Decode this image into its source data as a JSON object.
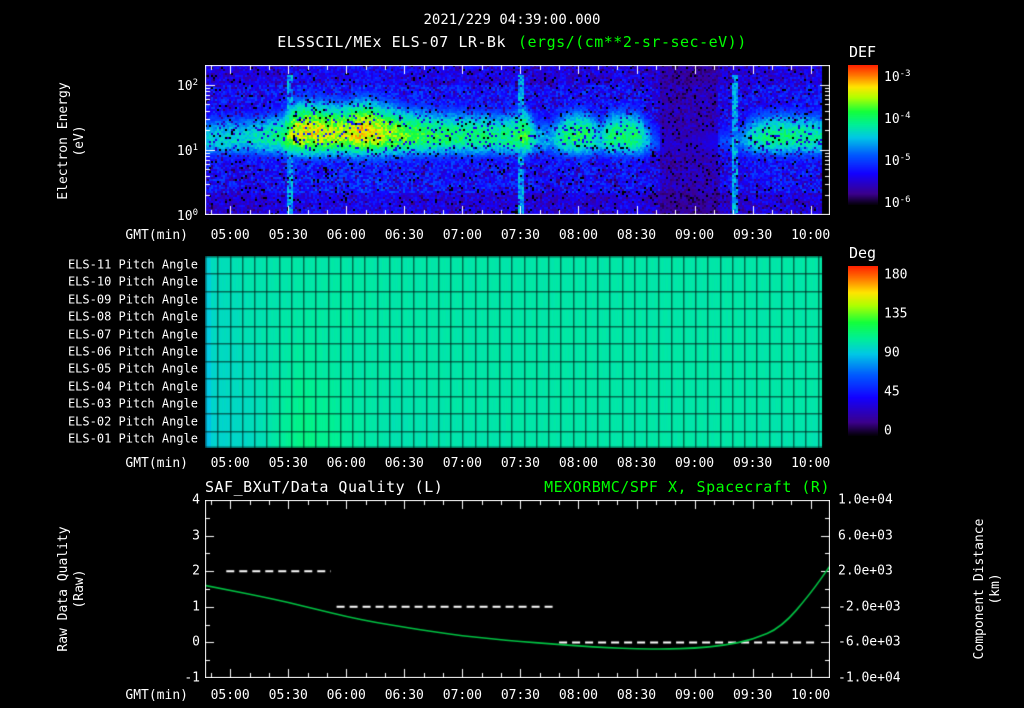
{
  "header": {
    "datetime": "2021/229 04:39:00.000",
    "instrument_title": "ELSSCIL/MEx ELS-07 LR-Bk",
    "units_title": "(ergs/(cm**2-sr-sec-eV))"
  },
  "colors": {
    "background": "#000000",
    "foreground": "#ffffff",
    "accent_green": "#00ff00",
    "curve_green": "#00c243"
  },
  "time_axis": {
    "label": "GMT(min)",
    "start": "04:47",
    "end": "10:10",
    "ticks": [
      "05:00",
      "05:30",
      "06:00",
      "06:30",
      "07:00",
      "07:30",
      "08:00",
      "08:30",
      "09:00",
      "09:30",
      "10:00"
    ]
  },
  "chart_data": [
    {
      "type": "heatmap",
      "name": "Electron energy spectrogram",
      "title": "ELSSCIL/MEx ELS-07 LR-Bk",
      "units": "(ergs/(cm**2-sr-sec-eV))",
      "xlabel": "GMT(min)",
      "ylabel_lines": [
        "Electron Energy",
        "(eV)"
      ],
      "y_scale": "log",
      "y_ticks": [
        "10^2",
        "10^1",
        "10^0"
      ],
      "y_range_log10": [
        0,
        2.3
      ],
      "colorbar": {
        "title": "DEF",
        "ticks": [
          "10^-3",
          "10^-4",
          "10^-5",
          "10^-6"
        ],
        "scale": "log",
        "colormap": "rainbow"
      },
      "band_center_ev": 15,
      "background_level": 0.2,
      "band_intensity_t": [
        0.5,
        0.52,
        0.53,
        0.52,
        0.55,
        0.58,
        0.62,
        0.82,
        0.85,
        0.83,
        0.8,
        0.8,
        0.87,
        0.86,
        0.8,
        0.75,
        0.7,
        0.68,
        0.66,
        0.64,
        0.63,
        0.62,
        0.62,
        0.6,
        0.62,
        0.72,
        0.48,
        0.45,
        0.6,
        0.66,
        0.64,
        0.5,
        0.64,
        0.65,
        0.62,
        0.4,
        0.25,
        0.2,
        0.22,
        0.25,
        0.3,
        0.35,
        0.4,
        0.55,
        0.6,
        0.62,
        0.6,
        0.6,
        0.58,
        0.55
      ],
      "streak_times": [
        "05:31",
        "07:30",
        "09:21"
      ],
      "dark_interval": {
        "start": "08:42",
        "end": "09:12"
      },
      "no_data_after": "10:06"
    },
    {
      "type": "heatmap",
      "name": "Pitch angle panels",
      "xlabel": "GMT(min)",
      "colorbar": {
        "title": "Deg",
        "ticks": [
          "180",
          "135",
          "90",
          "45",
          "0"
        ],
        "range": [
          0,
          180
        ],
        "colormap": "rainbow"
      },
      "no_data_after": "10:06",
      "rows": [
        {
          "label": "ELS-11 Pitch Angle",
          "deg": [
            86,
            89,
            90,
            90,
            90,
            90,
            90,
            90,
            90,
            90,
            90,
            90,
            90,
            90
          ]
        },
        {
          "label": "ELS-10 Pitch Angle",
          "deg": [
            85,
            89,
            90,
            91,
            90,
            90,
            90,
            90,
            90,
            90,
            90,
            90,
            90,
            90
          ]
        },
        {
          "label": "ELS-09 Pitch Angle",
          "deg": [
            85,
            88,
            90,
            91,
            90,
            90,
            90,
            90,
            90,
            90,
            90,
            90,
            90,
            90
          ]
        },
        {
          "label": "ELS-08 Pitch Angle",
          "deg": [
            84,
            88,
            91,
            91,
            90,
            90,
            90,
            90,
            90,
            90,
            90,
            90,
            90,
            90
          ]
        },
        {
          "label": "ELS-07 Pitch Angle",
          "deg": [
            84,
            88,
            91,
            90,
            90,
            90,
            90,
            90,
            90,
            90,
            90,
            90,
            90,
            90
          ]
        },
        {
          "label": "ELS-06 Pitch Angle",
          "deg": [
            84,
            87,
            92,
            90,
            90,
            90,
            90,
            90,
            90,
            90,
            90,
            90,
            90,
            90
          ]
        },
        {
          "label": "ELS-05 Pitch Angle",
          "deg": [
            83,
            87,
            92,
            90,
            90,
            90,
            90,
            90,
            90,
            90,
            90,
            90,
            90,
            90
          ]
        },
        {
          "label": "ELS-04 Pitch Angle",
          "deg": [
            83,
            87,
            94,
            91,
            89,
            90,
            90,
            90,
            90,
            90,
            90,
            90,
            90,
            90
          ]
        },
        {
          "label": "ELS-03 Pitch Angle",
          "deg": [
            83,
            86,
            95,
            91,
            89,
            90,
            90,
            90,
            90,
            90,
            90,
            90,
            90,
            90
          ]
        },
        {
          "label": "ELS-02 Pitch Angle",
          "deg": [
            82,
            86,
            96,
            92,
            88,
            89,
            90,
            90,
            90,
            90,
            90,
            90,
            89,
            89
          ]
        },
        {
          "label": "ELS-01 Pitch Angle",
          "deg": [
            82,
            85,
            97,
            92,
            88,
            89,
            89,
            90,
            90,
            90,
            90,
            90,
            89,
            88
          ]
        }
      ]
    },
    {
      "type": "line",
      "name": "Data quality and spacecraft component distance",
      "titles": [
        {
          "text": "SAF_BXuT/Data Quality (L)",
          "color": "#ffffff"
        },
        {
          "text": "MEXORBMC/SPF X, Spacecraft (R)",
          "color": "#00ff00"
        }
      ],
      "xlabel": "GMT(min)",
      "left_axis": {
        "title_lines": [
          "Raw Data Quality",
          "(Raw)"
        ],
        "ticks": [
          "4",
          "3",
          "2",
          "1",
          "0",
          "-1"
        ],
        "range": [
          -1,
          4
        ]
      },
      "right_axis": {
        "title_lines": [
          "Component Distance",
          "(km)"
        ],
        "ticks": [
          "1.0e+04",
          "6.0e+03",
          "2.0e+03",
          "-2.0e+03",
          "-6.0e+03",
          "-1.0e+04"
        ],
        "range": [
          -10000,
          10000
        ]
      },
      "series": [
        {
          "name": "SAF_BXuT/Data Quality (L)",
          "axis": "left",
          "color": "#ffffff",
          "style": "dashed",
          "steps": [
            {
              "value": 2,
              "start": "04:58",
              "end": "05:52"
            },
            {
              "value": 1,
              "start": "05:55",
              "end": "07:48"
            },
            {
              "value": 0,
              "start": "07:50",
              "end": "10:04"
            }
          ]
        },
        {
          "name": "MEXORBMC/SPF X, Spacecraft (R)",
          "axis": "right",
          "color": "#00c243",
          "style": "solid",
          "x_times": [
            "04:47",
            "05:00",
            "05:15",
            "05:30",
            "05:45",
            "06:00",
            "06:15",
            "06:30",
            "06:45",
            "07:00",
            "07:15",
            "07:30",
            "07:45",
            "08:00",
            "08:15",
            "08:30",
            "08:45",
            "09:00",
            "09:15",
            "09:30",
            "09:45",
            "10:00",
            "10:10"
          ],
          "y_km": [
            400,
            -150,
            -800,
            -1500,
            -2300,
            -3100,
            -3750,
            -4300,
            -4800,
            -5250,
            -5600,
            -5900,
            -6150,
            -6400,
            -6600,
            -6720,
            -6760,
            -6650,
            -6350,
            -5700,
            -4300,
            -500,
            2600
          ]
        }
      ]
    }
  ]
}
